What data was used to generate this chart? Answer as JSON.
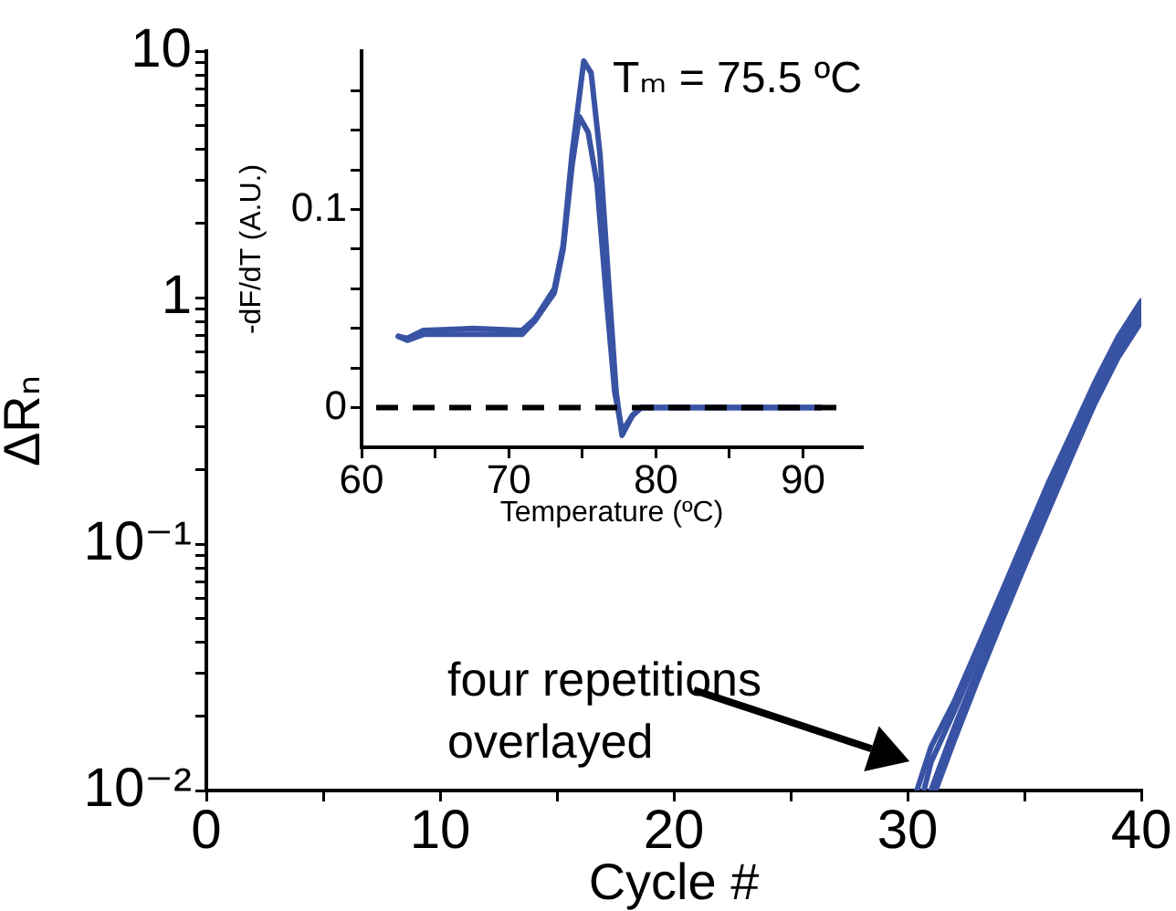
{
  "chart_data": [
    {
      "type": "line",
      "xlabel": "Cycle #",
      "ylabel": "ΔRₙ",
      "log": "y",
      "xlim": [
        0,
        40
      ],
      "ylim": [
        0.01,
        10
      ],
      "xticks": [
        0,
        {
          "value": 5,
          "label": null
        },
        10,
        {
          "value": 15,
          "label": null
        },
        20,
        {
          "value": 25,
          "label": null
        },
        30,
        {
          "value": 35,
          "label": null
        },
        40
      ],
      "yticks": [
        {
          "value": 0.01,
          "label": "10⁻²"
        },
        {
          "value": 0.02,
          "label": null
        },
        {
          "value": 0.03,
          "label": null
        },
        {
          "value": 0.04,
          "label": null
        },
        {
          "value": 0.05,
          "label": null
        },
        {
          "value": 0.06,
          "label": null
        },
        {
          "value": 0.07,
          "label": null
        },
        {
          "value": 0.08,
          "label": null
        },
        {
          "value": 0.09,
          "label": null
        },
        {
          "value": 0.1,
          "label": "10⁻¹"
        },
        {
          "value": 0.2,
          "label": null
        },
        {
          "value": 0.3,
          "label": null
        },
        {
          "value": 0.4,
          "label": null
        },
        {
          "value": 0.5,
          "label": null
        },
        {
          "value": 0.6,
          "label": null
        },
        {
          "value": 0.7,
          "label": null
        },
        {
          "value": 0.8,
          "label": null
        },
        {
          "value": 0.9,
          "label": null
        },
        1,
        {
          "value": 2,
          "label": null
        },
        {
          "value": 3,
          "label": null
        },
        {
          "value": 4,
          "label": null
        },
        {
          "value": 5,
          "label": null
        },
        {
          "value": 6,
          "label": null
        },
        {
          "value": 7,
          "label": null
        },
        {
          "value": 8,
          "label": null
        },
        {
          "value": 9,
          "label": null
        },
        10
      ],
      "series": [
        {
          "color": "#3953a4",
          "x": [
            30.4,
            31,
            32,
            33,
            34,
            35,
            36,
            37,
            38,
            39,
            40
          ],
          "values": [
            0.01,
            0.015,
            0.023,
            0.038,
            0.063,
            0.105,
            0.175,
            0.28,
            0.45,
            0.69,
            0.97
          ]
        },
        {
          "color": "#3953a4",
          "x": [
            30.7,
            31,
            32,
            33,
            34,
            35,
            36,
            37,
            38,
            39,
            40
          ],
          "values": [
            0.01,
            0.013,
            0.021,
            0.035,
            0.058,
            0.097,
            0.16,
            0.26,
            0.42,
            0.64,
            0.9
          ]
        },
        {
          "color": "#3953a4",
          "x": [
            31,
            32,
            33,
            34,
            35,
            36,
            37,
            38,
            39,
            40
          ],
          "values": [
            0.01,
            0.018,
            0.031,
            0.052,
            0.088,
            0.145,
            0.24,
            0.39,
            0.6,
            0.85
          ]
        },
        {
          "color": "#3953a4",
          "x": [
            31.2,
            32,
            33,
            34,
            35,
            36,
            37,
            38,
            39,
            40
          ],
          "values": [
            0.01,
            0.016,
            0.028,
            0.048,
            0.081,
            0.135,
            0.225,
            0.37,
            0.57,
            0.8
          ]
        }
      ],
      "annotations": [
        "four repetitions overlayed"
      ]
    },
    {
      "type": "line",
      "xlabel": "Temperature (ºC)",
      "ylabel": "-dF/dT (A.U.)",
      "xlim": [
        60,
        94
      ],
      "ylim": [
        -0.02,
        0.18
      ],
      "xticks": [
        60,
        {
          "value": 65,
          "label": null
        },
        70,
        {
          "value": 75,
          "label": null
        },
        80,
        {
          "value": 85,
          "label": null
        },
        90
      ],
      "yticks": [
        0,
        {
          "value": 0.02,
          "label": null
        },
        {
          "value": 0.04,
          "label": null
        },
        {
          "value": 0.06,
          "label": null
        },
        {
          "value": 0.08,
          "label": null
        },
        0.1,
        {
          "value": 0.12,
          "label": null
        },
        {
          "value": 0.14,
          "label": null
        },
        {
          "value": 0.16,
          "label": null
        }
      ],
      "series": [
        {
          "color": "#3953a4",
          "x": [
            62.5,
            63.1,
            64.2,
            67.6,
            70.9,
            71.8,
            73.1,
            73.7,
            74.3,
            75.1,
            75.6,
            76.2,
            76.9,
            77.3,
            77.7,
            78.4,
            79,
            91.2
          ],
          "values": [
            0.036,
            0.035,
            0.039,
            0.04,
            0.039,
            0.045,
            0.06,
            0.082,
            0.128,
            0.175,
            0.169,
            0.128,
            0.051,
            0.008,
            -0.014,
            -0.004,
            0,
            0
          ]
        },
        {
          "color": "#3953a4",
          "x": [
            62.5,
            63.1,
            64.2,
            67.6,
            70.9,
            71.8,
            73.1,
            73.7,
            74.3,
            74.8,
            75.4,
            76,
            76.7,
            77.2,
            77.7,
            78.4,
            79,
            91.2
          ],
          "values": [
            0.036,
            0.034,
            0.037,
            0.037,
            0.037,
            0.044,
            0.058,
            0.08,
            0.122,
            0.147,
            0.139,
            0.113,
            0.05,
            0.008,
            -0.012,
            -0.004,
            0,
            0
          ]
        }
      ],
      "ref_lines": [
        {
          "axis": "y",
          "value": 0,
          "color": "#000000",
          "line_style": "dashed"
        }
      ],
      "annotations": [
        "Tₘ = 75.5 ºC"
      ]
    }
  ]
}
